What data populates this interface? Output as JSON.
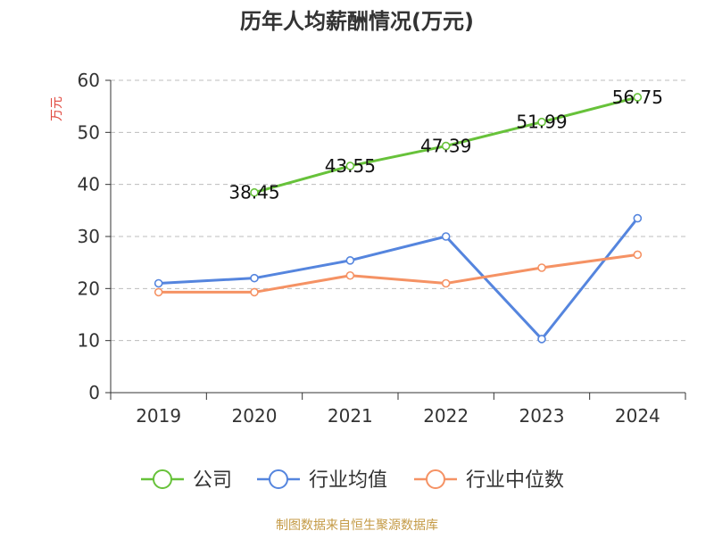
{
  "chart_data": {
    "type": "line",
    "title": "历年人均薪酬情况(万元)",
    "ylabel": "万元",
    "xlabel": "",
    "categories": [
      "2019",
      "2020",
      "2021",
      "2022",
      "2023",
      "2024"
    ],
    "ylim": [
      0,
      60
    ],
    "yticks": [
      0,
      10,
      20,
      30,
      40,
      50,
      60
    ],
    "grid": true,
    "legend_position": "bottom",
    "series": [
      {
        "name": "公司",
        "color": "#67c23a",
        "values": [
          null,
          38.45,
          43.55,
          47.39,
          51.99,
          56.75
        ],
        "labels": [
          "",
          "38.45",
          "43.55",
          "47.39",
          "51.99",
          "56.75"
        ]
      },
      {
        "name": "行业均值",
        "color": "#5585de",
        "values": [
          21.0,
          22.0,
          25.4,
          30.0,
          10.3,
          33.5
        ],
        "labels": []
      },
      {
        "name": "行业中位数",
        "color": "#f59264",
        "values": [
          19.3,
          19.3,
          22.5,
          21.0,
          24.0,
          26.5
        ],
        "labels": []
      }
    ]
  },
  "footer": {
    "source": "制图数据来自恒生聚源数据库"
  }
}
